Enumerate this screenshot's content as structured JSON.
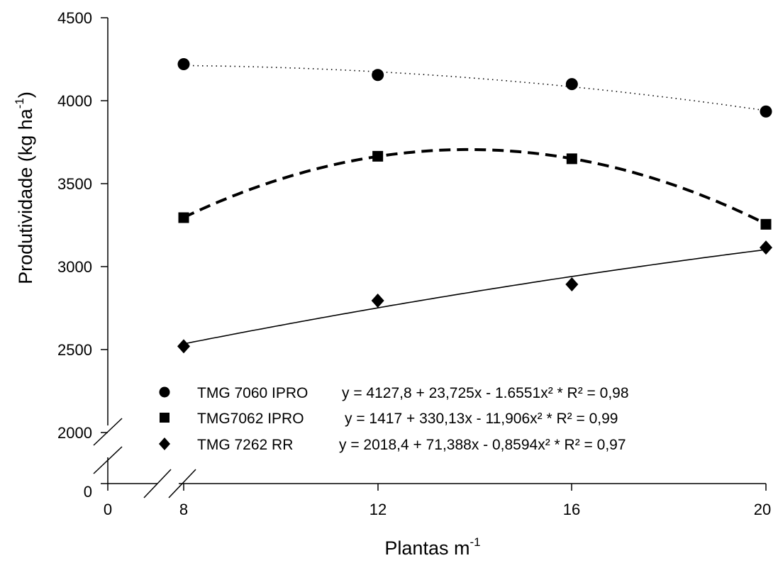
{
  "chart_data": {
    "type": "scatter",
    "xlabel": "Plantas m",
    "xlabel_superscript": "-1",
    "ylabel": "Produtividade (kg ha",
    "ylabel_superscript": "-1",
    "ylabel_suffix": ")",
    "x_ticks": [
      "0",
      "8",
      "12",
      "16",
      "20"
    ],
    "y_ticks": [
      "0",
      "2000",
      "2500",
      "3000",
      "3500",
      "4000",
      "4500"
    ],
    "xlim": [
      8,
      20
    ],
    "ylim": [
      2000,
      4500
    ],
    "axis_break_x": [
      0,
      8
    ],
    "axis_break_y": [
      0,
      2000
    ],
    "grid": false,
    "legend_position": "bottom-center",
    "series": [
      {
        "name": "TMG 7060 IPRO",
        "equation": "y = 4127,8 + 23,725x - 1.6551x² * R² = 0,98",
        "marker": "circle",
        "line_style": "dotted",
        "x": [
          8,
          12,
          16,
          20
        ],
        "y": [
          4220,
          4155,
          4100,
          3935
        ],
        "fit": {
          "a": 4127.8,
          "b": 23.725,
          "c": -1.6551
        }
      },
      {
        "name": "TMG7062 IPRO",
        "equation": "y = 1417  + 330,13x - 11,906x² * R² = 0,99",
        "marker": "square",
        "line_style": "dashed",
        "x": [
          8,
          12,
          16,
          20
        ],
        "y": [
          3295,
          3665,
          3650,
          3255
        ],
        "fit": {
          "a": 1417,
          "b": 330.13,
          "c": -11.906
        }
      },
      {
        "name": "TMG 7262 RR",
        "equation": "y = 2018,4 + 71,388x - 0,8594x² * R² = 0,97",
        "marker": "diamond",
        "line_style": "solid",
        "x": [
          8,
          12,
          16,
          20
        ],
        "y": [
          2520,
          2795,
          2893,
          3115
        ],
        "fit": {
          "a": 2018.4,
          "b": 71.388,
          "c": -0.8594
        }
      }
    ]
  }
}
